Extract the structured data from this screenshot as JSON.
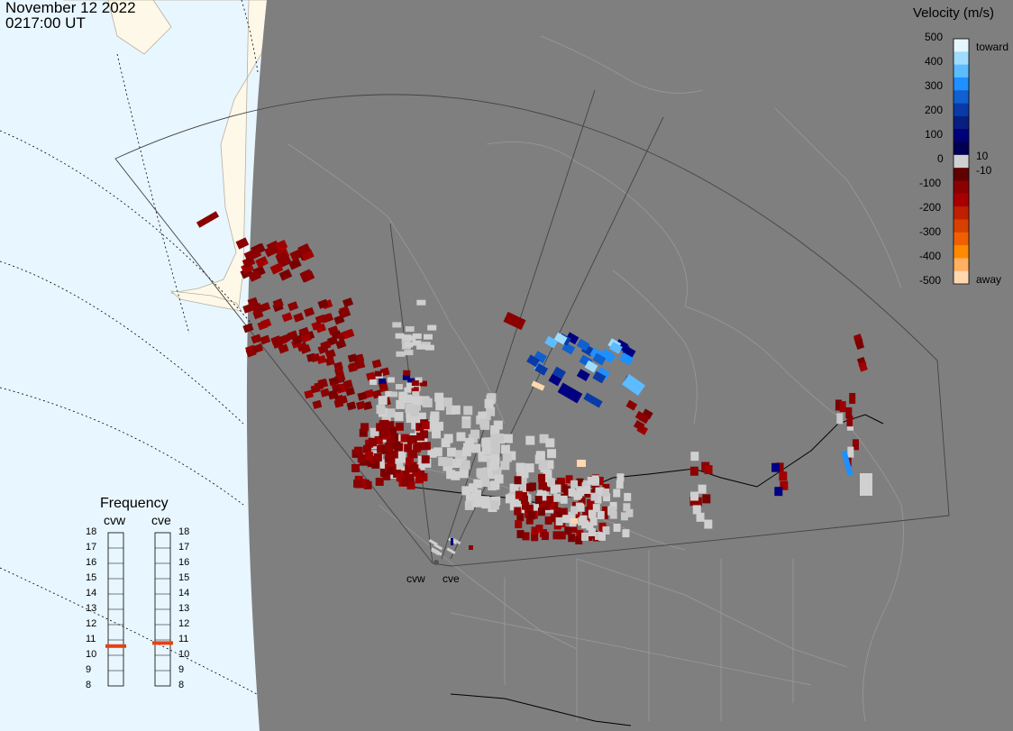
{
  "header": {
    "date": "November 12 2022",
    "time": "0217:00 UT"
  },
  "colorbar": {
    "title": "Velocity (m/s)",
    "labels": [
      "500",
      "400",
      "300",
      "200",
      "100",
      "10",
      "0",
      "-10",
      "-100",
      "-200",
      "-300",
      "-400",
      "-500"
    ],
    "toward": "toward",
    "away": "away",
    "colors": [
      "#e6f6ff",
      "#9fdcff",
      "#5cbcff",
      "#1e90ff",
      "#1060d0",
      "#0a3aa8",
      "#061f80",
      "#00007a",
      "#000050",
      "#d0d0d0",
      "#600000",
      "#8b0000",
      "#a80000",
      "#c02000",
      "#d84000",
      "#f06000",
      "#ff8a00",
      "#ffb060",
      "#ffd8b0"
    ]
  },
  "frequency": {
    "title": "Frequency",
    "radars": [
      "cvw",
      "cve"
    ],
    "ticks": [
      "18",
      "17",
      "16",
      "15",
      "14",
      "13",
      "12",
      "11",
      "10",
      "9",
      "8"
    ],
    "cvw_mhz": 10.6,
    "cve_mhz": 10.8,
    "marker_color": "#e84010"
  },
  "radar_sites": [
    "cvw",
    "cve"
  ],
  "colors": {
    "land_day": "#fdf8e8",
    "ocean_day": "#e8f6ff",
    "night": "#7f7f7f",
    "velocity_away": "#8b0000",
    "ground_scatter": "#d0d0d0",
    "velocity_toward": "#1e90ff"
  }
}
